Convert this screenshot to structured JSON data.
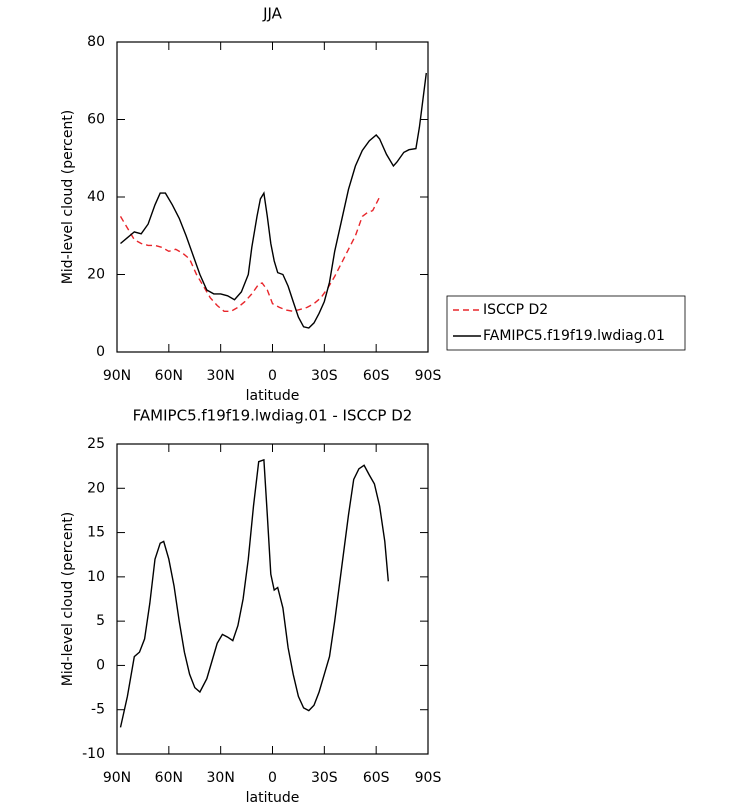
{
  "chart_data": [
    {
      "type": "line",
      "title": "JJA",
      "xlabel": "latitude",
      "ylabel": "Mid-level cloud (percent)",
      "xlim": [
        90,
        -90
      ],
      "ylim": [
        0,
        80
      ],
      "xticks": [
        {
          "value": 90,
          "label": "90N"
        },
        {
          "value": 60,
          "label": "60N"
        },
        {
          "value": 30,
          "label": "30N"
        },
        0,
        {
          "value": -30,
          "label": "30S"
        },
        {
          "value": -60,
          "label": "60S"
        },
        {
          "value": -90,
          "label": "90S"
        }
      ],
      "yticks": [
        0,
        20,
        40,
        60,
        80
      ],
      "legend": "right",
      "series": [
        {
          "name": "ISCCP D2",
          "color": "#e8262b",
          "dash": true,
          "x": [
            88,
            84,
            80,
            76,
            72,
            68,
            64,
            60,
            56,
            52,
            48,
            44,
            40,
            36,
            32,
            28,
            24,
            20,
            16,
            12,
            8,
            6,
            3,
            0,
            -4,
            -8,
            -12,
            -16,
            -20,
            -24,
            -28,
            -32,
            -36,
            -40,
            -44,
            -48,
            -52,
            -55,
            -58,
            -62
          ],
          "values": [
            35,
            32,
            29,
            28,
            27.5,
            27.5,
            27,
            26,
            26.5,
            25.5,
            24,
            20,
            17,
            14,
            12,
            10.5,
            10.5,
            11.5,
            13,
            15,
            17.5,
            17.8,
            16,
            12.5,
            11.5,
            10.8,
            10.5,
            11,
            11.5,
            12.5,
            14,
            16.5,
            19.5,
            23,
            26.5,
            30,
            35,
            36,
            36.5,
            40
          ]
        },
        {
          "name": "FAMIPC5.f19f19.lwdiag.01",
          "color": "#000000",
          "dash": false,
          "x": [
            88,
            84,
            80,
            76,
            72,
            68,
            65,
            62,
            58,
            54,
            50,
            46,
            42,
            38,
            34,
            30,
            26,
            22,
            18,
            14,
            12,
            9,
            7,
            5,
            3,
            1,
            -1,
            -3,
            -6,
            -9,
            -12,
            -15,
            -18,
            -21,
            -24,
            -27,
            -30,
            -33,
            -36,
            -40,
            -44,
            -48,
            -52,
            -56,
            -60,
            -62,
            -66,
            -70,
            -72,
            -76,
            -79,
            -83,
            -85,
            -89
          ],
          "values": [
            28,
            29.5,
            31,
            30.5,
            33,
            38,
            41,
            41,
            38,
            34.5,
            30,
            25,
            20,
            16,
            15,
            15,
            14.5,
            13.5,
            15.5,
            20,
            27,
            35,
            39.5,
            41,
            35,
            28,
            23.5,
            20.5,
            20,
            17,
            13,
            9,
            6.5,
            6.2,
            7.5,
            10,
            13,
            18,
            26,
            34,
            42,
            48,
            52,
            54.5,
            56,
            55,
            51,
            48,
            49,
            51.5,
            52.2,
            52.5,
            58,
            72
          ]
        }
      ]
    },
    {
      "type": "line",
      "title": "FAMIPC5.f19f19.lwdiag.01 - ISCCP D2",
      "xlabel": "latitude",
      "ylabel": "Mid-level cloud (percent)",
      "xlim": [
        90,
        -90
      ],
      "ylim": [
        -10,
        25
      ],
      "xticks": [
        {
          "value": 90,
          "label": "90N"
        },
        {
          "value": 60,
          "label": "60N"
        },
        {
          "value": 30,
          "label": "30N"
        },
        0,
        {
          "value": -30,
          "label": "30S"
        },
        {
          "value": -60,
          "label": "60S"
        },
        {
          "value": -90,
          "label": "90S"
        }
      ],
      "yticks": [
        -10,
        -5,
        0,
        5,
        10,
        15,
        20,
        25
      ],
      "series": [
        {
          "color": "#000000",
          "dash": false,
          "x": [
            88,
            84,
            80,
            77,
            74,
            71,
            68,
            65,
            63,
            60,
            57,
            54,
            51,
            48,
            45,
            42,
            38,
            35,
            32,
            29,
            26,
            23,
            20,
            17,
            14,
            11,
            8,
            5,
            3,
            1,
            -1,
            -3,
            -6,
            -9,
            -12,
            -15,
            -18,
            -21,
            -24,
            -27,
            -30,
            -33,
            -36,
            -40,
            -44,
            -47,
            -50,
            -53,
            -56,
            -59,
            -62,
            -65,
            -67
          ],
          "values": [
            -7,
            -3.5,
            1,
            1.5,
            3,
            7,
            12,
            13.8,
            14,
            12,
            9,
            5,
            1.5,
            -1,
            -2.5,
            -3,
            -1.5,
            0.5,
            2.5,
            3.5,
            3.2,
            2.8,
            4.5,
            7.5,
            12,
            18,
            23,
            23.2,
            17,
            10.3,
            8.5,
            8.8,
            6.5,
            2,
            -1,
            -3.5,
            -4.8,
            -5.1,
            -4.5,
            -3,
            -1,
            1,
            5,
            11,
            17,
            21,
            22.2,
            22.6,
            21.5,
            20.5,
            18,
            14,
            9.5
          ]
        }
      ]
    }
  ]
}
